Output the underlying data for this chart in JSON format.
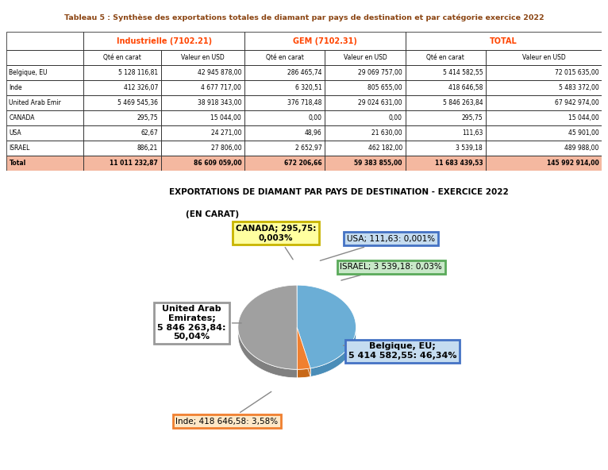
{
  "title_table": "Tableau 5 : Synthèse des exportations totales de diamant par pays de destination et par catégorie exercice 2022",
  "sub_headers": [
    "",
    "Qté en carat",
    "Valeur en USD",
    "Qté en carat",
    "Valeur en USD",
    "Qté en carat",
    "Valeur en USD"
  ],
  "rows": [
    [
      "Belgique, EU",
      "5 128 116,81",
      "42 945 878,00",
      "286 465,74",
      "29 069 757,00",
      "5 414 582,55",
      "72 015 635,00"
    ],
    [
      "Inde",
      "412 326,07",
      "4 677 717,00",
      "6 320,51",
      "805 655,00",
      "418 646,58",
      "5 483 372,00"
    ],
    [
      "United Arab Emir",
      "5 469 545,36",
      "38 918 343,00",
      "376 718,48",
      "29 024 631,00",
      "5 846 263,84",
      "67 942 974,00"
    ],
    [
      "CANADA",
      "295,75",
      "15 044,00",
      "0,00",
      "0,00",
      "295,75",
      "15 044,00"
    ],
    [
      "USA",
      "62,67",
      "24 271,00",
      "48,96",
      "21 630,00",
      "111,63",
      "45 901,00"
    ],
    [
      "ISRAEL",
      "886,21",
      "27 806,00",
      "2 652,97",
      "462 182,00",
      "3 539,18",
      "489 988,00"
    ],
    [
      "Total",
      "11 011 232,87",
      "86 609 059,00",
      "672 206,66",
      "59 383 855,00",
      "11 683 439,53",
      "145 992 914,00"
    ]
  ],
  "pie_title_line1": "EXPORTATIONS DE DIAMANT PAR PAYS DE DESTINATION - EXERCICE 2022",
  "pie_title_line2": "(EN CARAT)",
  "pie_values": [
    5414582.55,
    418646.58,
    5846263.84,
    295.75,
    111.63,
    3539.18
  ],
  "pie_colors": [
    "#6baed6",
    "#f08030",
    "#a0a0a0",
    "#c8b400",
    "#6baed6",
    "#5aaa5a"
  ],
  "pie_shadow_colors": [
    "#4a8db8",
    "#c86818",
    "#808080",
    "#a09000",
    "#4a8db8",
    "#3a8a3a"
  ],
  "background_color": "#ffffff",
  "table_title_color": "#8B4513",
  "total_row_bg": "#f4b8a0",
  "label_configs": [
    {
      "text": "Belgique, EU;\n5 414 582,55: 46,34%",
      "box_color": "#c5dcf0",
      "edge_color": "#4472c4",
      "fontsize": 8,
      "bold": true
    },
    {
      "text": "Inde; 418 646,58: 3,58%",
      "box_color": "#fde8c8",
      "edge_color": "#f08030",
      "fontsize": 7.5,
      "bold": false
    },
    {
      "text": "United Arab\nEmirates;\n5 846 263,84:\n50,04%",
      "box_color": "#ffffff",
      "edge_color": "#999999",
      "fontsize": 8,
      "bold": true
    },
    {
      "text": "CANADA; 295,75:\n0,003%",
      "box_color": "#ffffa0",
      "edge_color": "#c8b400",
      "fontsize": 7.5,
      "bold": true
    },
    {
      "text": "USA; 111,63: 0,001%",
      "box_color": "#c5dcf0",
      "edge_color": "#4472c4",
      "fontsize": 7.5,
      "bold": false
    },
    {
      "text": "ISRAEL; 3 539,18: 0,03%",
      "box_color": "#c8e8c8",
      "edge_color": "#5aaa5a",
      "fontsize": 7.5,
      "bold": false
    }
  ]
}
